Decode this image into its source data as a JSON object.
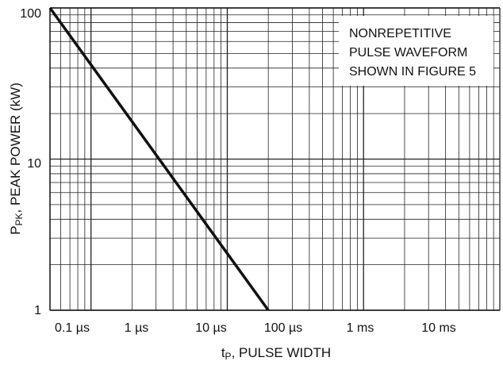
{
  "chart_data": {
    "type": "line",
    "x_scale": "log",
    "y_scale": "log",
    "xlim_seconds": [
      5e-05,
      0.1
    ],
    "ylim_kW": [
      1,
      100
    ],
    "grid": true,
    "x_tick_labels": [
      "0.1 µs",
      "1 µs",
      "10 µs",
      "100 µs",
      "1 ms",
      "10 ms"
    ],
    "y_tick_labels": [
      "100",
      "10",
      "1"
    ],
    "xlabel": {
      "main": "t",
      "sub": "P",
      "rest": ", PULSE WIDTH"
    },
    "ylabel": {
      "main": "P",
      "sub": "PK",
      "rest": ", PEAK POWER (kW)"
    },
    "annotation": [
      "NONREPETITIVE",
      "PULSE WAVEFORM",
      "SHOWN IN FIGURE 5"
    ],
    "series": [
      {
        "x_seconds": [
          5e-05,
          0.002
        ],
        "y_kW": [
          100,
          1
        ],
        "color": "#111111"
      }
    ]
  }
}
